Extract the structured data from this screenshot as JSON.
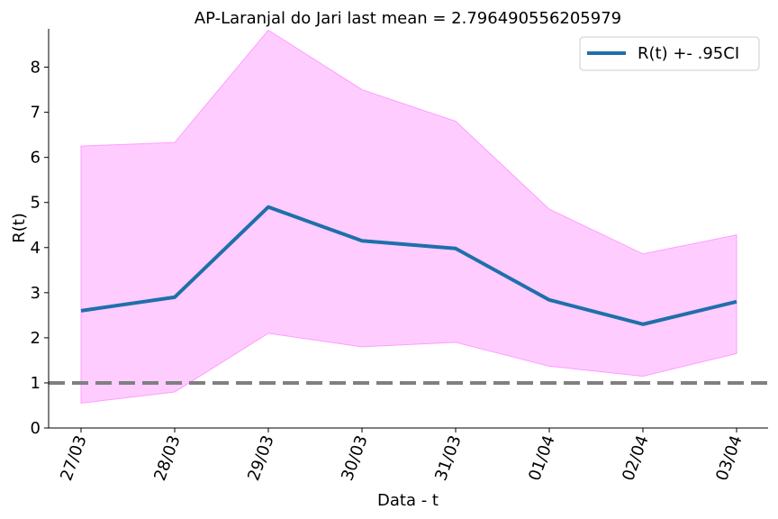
{
  "chart_data": {
    "type": "line",
    "title": "AP-Laranjal do Jari last mean = 2.796490556205979",
    "xlabel": "Data - t",
    "ylabel": "R(t)",
    "categories": [
      "27/03",
      "28/03",
      "29/03",
      "30/03",
      "31/03",
      "01/04",
      "02/04",
      "03/04"
    ],
    "series": [
      {
        "name": "R(t) +- .95CI",
        "values": [
          2.6,
          2.9,
          4.9,
          4.15,
          3.98,
          2.84,
          2.3,
          2.8
        ],
        "lower": [
          0.55,
          0.8,
          2.1,
          1.8,
          1.9,
          1.37,
          1.15,
          1.65
        ],
        "upper": [
          6.25,
          6.33,
          8.82,
          7.5,
          6.8,
          4.85,
          3.86,
          4.28
        ],
        "color": "#1f6fab",
        "band_color": "#ffccff"
      }
    ],
    "reference_line": {
      "y": 1,
      "color": "#808080",
      "style": "dashed"
    },
    "ylim": [
      0,
      8.85
    ],
    "yticks": [
      "0",
      "1",
      "2",
      "3",
      "4",
      "5",
      "6",
      "7",
      "8"
    ],
    "grid": false,
    "legend_position": "top-right"
  }
}
